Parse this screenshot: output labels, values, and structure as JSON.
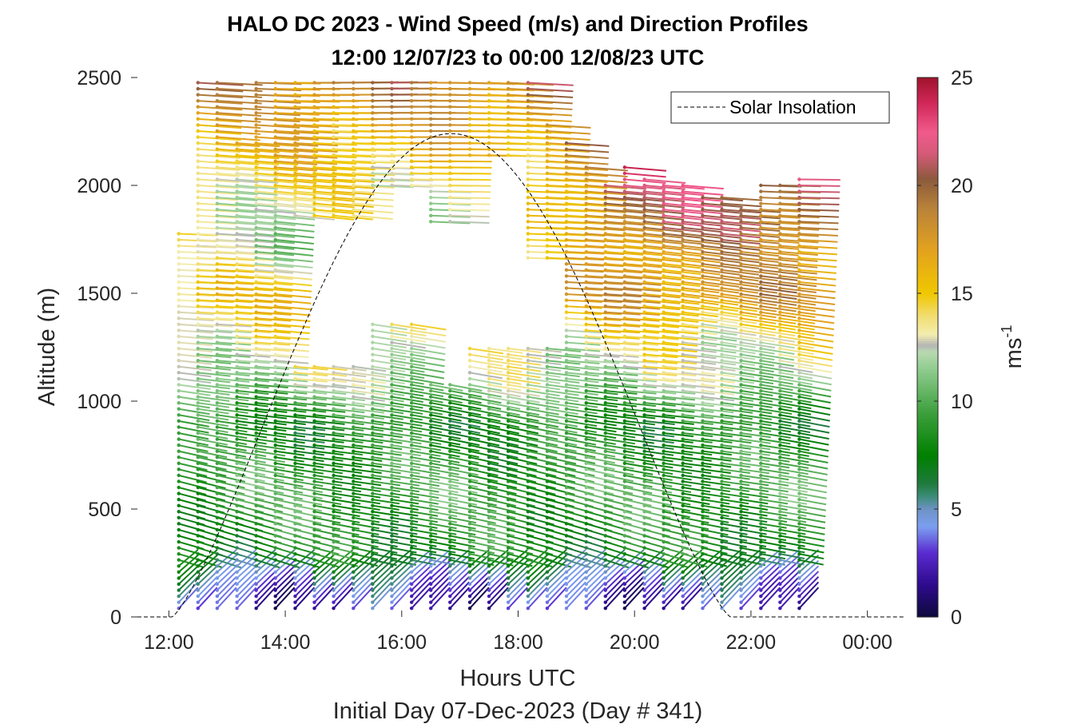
{
  "chart_data": {
    "type": "wind-barb-profile",
    "title": "HALO DC 2023 - Wind Speed (m/s) and Direction Profiles",
    "subtitle": "12:00 12/07/23 to 00:00 12/08/23  UTC",
    "xlabel": "Hours UTC",
    "ylabel": "Altitude (m)",
    "caption": "Initial Day 07-Dec-2023 (Day # 341)",
    "xlim": [
      11.35,
      24.65
    ],
    "ylim": [
      0,
      2500
    ],
    "x_ticks": [
      {
        "value": 12,
        "label": "12:00"
      },
      {
        "value": 14,
        "label": "14:00"
      },
      {
        "value": 16,
        "label": "16:00"
      },
      {
        "value": 18,
        "label": "18:00"
      },
      {
        "value": 20,
        "label": "20:00"
      },
      {
        "value": 22,
        "label": "22:00"
      },
      {
        "value": 24,
        "label": "00:00"
      }
    ],
    "y_ticks": [
      {
        "value": 0,
        "label": "0"
      },
      {
        "value": 500,
        "label": "500"
      },
      {
        "value": 1000,
        "label": "1000"
      },
      {
        "value": 1500,
        "label": "1500"
      },
      {
        "value": 2000,
        "label": "2000"
      },
      {
        "value": 2500,
        "label": "2500"
      }
    ],
    "profile_times": [
      12.17,
      12.5,
      12.83,
      13.17,
      13.5,
      13.83,
      14.17,
      14.5,
      14.83,
      15.17,
      15.5,
      15.83,
      16.17,
      16.5,
      16.83,
      17.17,
      17.5,
      17.83,
      18.17,
      18.5,
      18.83,
      19.17,
      19.5,
      19.83,
      20.17,
      20.5,
      20.83,
      21.17,
      21.5,
      21.83,
      22.17,
      22.5,
      22.83
    ],
    "profile_tops": [
      1780,
      2500,
      2500,
      2200,
      2500,
      2500,
      2500,
      2500,
      2500,
      2500,
      2500,
      2500,
      2500,
      2500,
      2500,
      2500,
      2500,
      2500,
      2500,
      2300,
      2200,
      2100,
      2000,
      2100,
      2050,
      2000,
      2000,
      1950,
      1950,
      1900,
      2000,
      2000,
      2050
    ],
    "gaps": [
      {
        "t0": 13.9,
        "t1": 15.2,
        "z0": 1180,
        "z1": 1850
      },
      {
        "t0": 15.35,
        "t1": 16.4,
        "z0": 1380,
        "z1": 1980
      },
      {
        "t0": 16.4,
        "t1": 17.1,
        "z0": 1080,
        "z1": 1820
      },
      {
        "t0": 17.1,
        "t1": 18.5,
        "z0": 1250,
        "z1": 1650
      },
      {
        "t0": 17.1,
        "t1": 17.9,
        "z0": 1650,
        "z1": 2130
      }
    ],
    "speed_profile": [
      {
        "z": 0,
        "speed": 1.5
      },
      {
        "z": 150,
        "speed": 4.5
      },
      {
        "z": 300,
        "speed": 8
      },
      {
        "z": 600,
        "speed": 9.5
      },
      {
        "z": 900,
        "speed": 8
      },
      {
        "z": 1100,
        "speed": 12
      },
      {
        "z": 1300,
        "speed": 13.5
      },
      {
        "z": 1500,
        "speed": 15
      },
      {
        "z": 1700,
        "speed": 12
      },
      {
        "z": 2000,
        "speed": 14
      },
      {
        "z": 2300,
        "speed": 17
      },
      {
        "z": 2500,
        "speed": 19
      }
    ],
    "late_speed_boost": {
      "from_time": 18.0,
      "min_altitude": 1300,
      "max_extra": 7
    },
    "wind_direction_note": "winds generally from the northwest to west",
    "solar_insolation": {
      "name": "Solar Insolation",
      "style": "dashed",
      "color": "#000000",
      "sunrise": 12.05,
      "sunset": 21.65,
      "peak_time": 16.9,
      "peak_altitude": 2240
    },
    "legend": {
      "entries": [
        "Solar Insolation"
      ],
      "placement": "top-right"
    },
    "colorbar": {
      "label": "ms",
      "label_exponent": "-1",
      "range": [
        0,
        25
      ],
      "ticks": [
        {
          "value": 0,
          "label": "0"
        },
        {
          "value": 5,
          "label": "5"
        },
        {
          "value": 10,
          "label": "10"
        },
        {
          "value": 15,
          "label": "15"
        },
        {
          "value": 20,
          "label": "20"
        },
        {
          "value": 25,
          "label": "25"
        }
      ],
      "stops": [
        {
          "value": 0,
          "color": "#0d0a3c"
        },
        {
          "value": 1.5,
          "color": "#2e0b8c"
        },
        {
          "value": 3,
          "color": "#5a2bd0"
        },
        {
          "value": 4.2,
          "color": "#7b9ff0"
        },
        {
          "value": 5,
          "color": "#6e93c6"
        },
        {
          "value": 5.6,
          "color": "#3c8c78"
        },
        {
          "value": 6.2,
          "color": "#1e7a3c"
        },
        {
          "value": 7.5,
          "color": "#008000"
        },
        {
          "value": 9.5,
          "color": "#3ea03e"
        },
        {
          "value": 11.5,
          "color": "#8fcc8f"
        },
        {
          "value": 12.3,
          "color": "#b9d9b0"
        },
        {
          "value": 12.6,
          "color": "#b4b4b4"
        },
        {
          "value": 13.1,
          "color": "#f3eeb0"
        },
        {
          "value": 14,
          "color": "#f2dc6e"
        },
        {
          "value": 15,
          "color": "#f0c800"
        },
        {
          "value": 17,
          "color": "#e3a21e"
        },
        {
          "value": 19,
          "color": "#b8823a"
        },
        {
          "value": 20.3,
          "color": "#8b5a3c"
        },
        {
          "value": 21.5,
          "color": "#d65a78"
        },
        {
          "value": 22.5,
          "color": "#f05a8c"
        },
        {
          "value": 23.8,
          "color": "#d2285a"
        },
        {
          "value": 25,
          "color": "#a0142d"
        }
      ]
    }
  }
}
